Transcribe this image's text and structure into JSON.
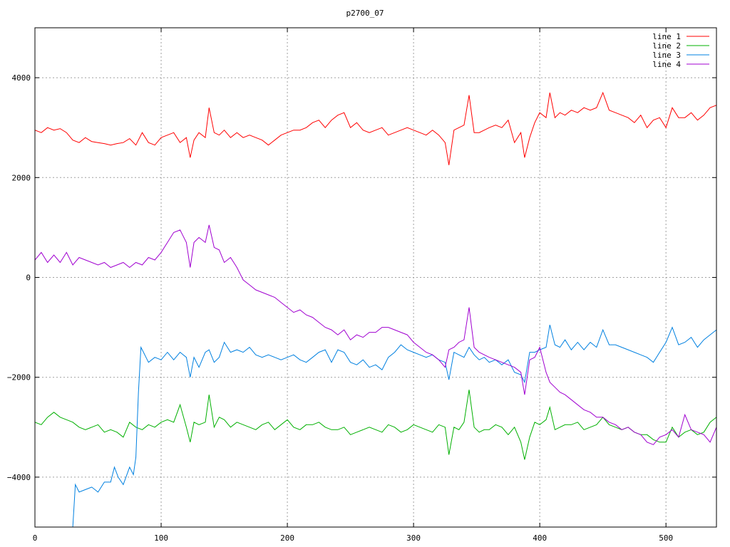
{
  "chart_data": {
    "type": "line",
    "title": "p2700_07",
    "xlabel": "",
    "ylabel": "",
    "xlim": [
      0,
      540
    ],
    "ylim": [
      -5000,
      5000
    ],
    "xticks": [
      0,
      100,
      200,
      300,
      400,
      500
    ],
    "yticks": [
      -4000,
      -2000,
      0,
      2000,
      4000
    ],
    "grid": true,
    "legend_position": "top-right",
    "series": [
      {
        "name": "line 1",
        "color": "#ff0000",
        "x": [
          0,
          5,
          10,
          15,
          20,
          25,
          30,
          35,
          40,
          45,
          50,
          55,
          60,
          65,
          70,
          75,
          80,
          85,
          90,
          95,
          100,
          105,
          110,
          115,
          120,
          123,
          126,
          130,
          135,
          138,
          142,
          146,
          150,
          155,
          160,
          165,
          170,
          175,
          180,
          185,
          190,
          195,
          200,
          205,
          210,
          215,
          220,
          225,
          230,
          235,
          240,
          245,
          250,
          255,
          260,
          265,
          270,
          275,
          280,
          285,
          290,
          295,
          300,
          305,
          310,
          315,
          320,
          325,
          328,
          332,
          336,
          340,
          344,
          348,
          352,
          356,
          360,
          365,
          370,
          375,
          380,
          385,
          388,
          392,
          396,
          400,
          405,
          408,
          412,
          416,
          420,
          425,
          430,
          435,
          440,
          445,
          450,
          455,
          460,
          465,
          470,
          475,
          480,
          485,
          490,
          495,
          500,
          505,
          510,
          515,
          520,
          525,
          530,
          535,
          540
        ],
        "y": [
          2950,
          2900,
          3000,
          2950,
          2980,
          2900,
          2750,
          2700,
          2800,
          2720,
          2700,
          2680,
          2650,
          2680,
          2700,
          2780,
          2650,
          2900,
          2700,
          2650,
          2800,
          2850,
          2900,
          2700,
          2800,
          2400,
          2750,
          2900,
          2800,
          3400,
          2900,
          2850,
          2950,
          2800,
          2900,
          2800,
          2850,
          2800,
          2750,
          2650,
          2750,
          2850,
          2900,
          2950,
          2950,
          3000,
          3100,
          3150,
          3000,
          3150,
          3250,
          3300,
          3000,
          3100,
          2950,
          2900,
          2950,
          3000,
          2850,
          2900,
          2950,
          3000,
          2950,
          2900,
          2850,
          2950,
          2850,
          2700,
          2250,
          2950,
          3000,
          3050,
          3650,
          2900,
          2900,
          2950,
          3000,
          3050,
          3000,
          3150,
          2700,
          2900,
          2400,
          2800,
          3100,
          3300,
          3200,
          3700,
          3200,
          3300,
          3250,
          3350,
          3300,
          3400,
          3350,
          3400,
          3700,
          3350,
          3300,
          3250,
          3200,
          3100,
          3250,
          3000,
          3150,
          3200,
          3000,
          3400,
          3200,
          3200,
          3300,
          3150,
          3250,
          3400,
          3450
        ]
      },
      {
        "name": "line 2",
        "color": "#00b000",
        "x": [
          0,
          5,
          10,
          15,
          20,
          25,
          30,
          35,
          40,
          45,
          50,
          55,
          60,
          65,
          70,
          75,
          80,
          85,
          90,
          95,
          100,
          105,
          110,
          115,
          120,
          123,
          126,
          130,
          135,
          138,
          142,
          146,
          150,
          155,
          160,
          165,
          170,
          175,
          180,
          185,
          190,
          195,
          200,
          205,
          210,
          215,
          220,
          225,
          230,
          235,
          240,
          245,
          250,
          255,
          260,
          265,
          270,
          275,
          280,
          285,
          290,
          295,
          300,
          305,
          310,
          315,
          320,
          325,
          328,
          332,
          336,
          340,
          344,
          348,
          352,
          356,
          360,
          365,
          370,
          375,
          380,
          385,
          388,
          392,
          396,
          400,
          405,
          408,
          412,
          416,
          420,
          425,
          430,
          435,
          440,
          445,
          450,
          455,
          460,
          465,
          470,
          475,
          480,
          485,
          490,
          495,
          500,
          505,
          510,
          515,
          520,
          525,
          530,
          535,
          540
        ],
        "y": [
          -2900,
          -2950,
          -2800,
          -2700,
          -2800,
          -2850,
          -2900,
          -3000,
          -3050,
          -3000,
          -2950,
          -3100,
          -3050,
          -3100,
          -3200,
          -2900,
          -3000,
          -3050,
          -2950,
          -3000,
          -2900,
          -2850,
          -2900,
          -2550,
          -3000,
          -3300,
          -2900,
          -2950,
          -2900,
          -2350,
          -3000,
          -2800,
          -2850,
          -3000,
          -2900,
          -2950,
          -3000,
          -3050,
          -2950,
          -2900,
          -3050,
          -2950,
          -2850,
          -3000,
          -3050,
          -2950,
          -2950,
          -2900,
          -3000,
          -3050,
          -3050,
          -3000,
          -3150,
          -3100,
          -3050,
          -3000,
          -3050,
          -3100,
          -2950,
          -3000,
          -3100,
          -3050,
          -2950,
          -3000,
          -3050,
          -3100,
          -2950,
          -3000,
          -3550,
          -3000,
          -3050,
          -2900,
          -2250,
          -3000,
          -3100,
          -3050,
          -3050,
          -2950,
          -3000,
          -3150,
          -3000,
          -3300,
          -3650,
          -3200,
          -2900,
          -2950,
          -2850,
          -2600,
          -3050,
          -3000,
          -2950,
          -2950,
          -2900,
          -3050,
          -3000,
          -2950,
          -2800,
          -2950,
          -3000,
          -3050,
          -3000,
          -3100,
          -3150,
          -3150,
          -3250,
          -3300,
          -3300,
          -3000,
          -3200,
          -3100,
          -3050,
          -3150,
          -3100,
          -2900,
          -2800
        ]
      },
      {
        "name": "line 3",
        "color": "#0080e0",
        "x": [
          30,
          32,
          35,
          40,
          45,
          50,
          55,
          60,
          63,
          66,
          70,
          75,
          78,
          80,
          82,
          84,
          86,
          88,
          90,
          95,
          100,
          105,
          110,
          115,
          120,
          123,
          126,
          130,
          135,
          138,
          142,
          146,
          150,
          155,
          160,
          165,
          170,
          175,
          180,
          185,
          190,
          195,
          200,
          205,
          210,
          215,
          220,
          225,
          230,
          235,
          240,
          245,
          250,
          255,
          260,
          265,
          270,
          275,
          280,
          285,
          290,
          295,
          300,
          305,
          310,
          315,
          320,
          325,
          328,
          332,
          336,
          340,
          344,
          348,
          352,
          356,
          360,
          365,
          370,
          375,
          380,
          385,
          388,
          392,
          396,
          400,
          405,
          408,
          412,
          416,
          420,
          425,
          430,
          435,
          440,
          445,
          450,
          455,
          460,
          465,
          470,
          475,
          480,
          485,
          490,
          495,
          500,
          505,
          510,
          515,
          520,
          525,
          530,
          535,
          540
        ],
        "y": [
          -5000,
          -4150,
          -4300,
          -4250,
          -4200,
          -4300,
          -4100,
          -4100,
          -3800,
          -4000,
          -4150,
          -3800,
          -3950,
          -3600,
          -2300,
          -1400,
          -1500,
          -1600,
          -1700,
          -1600,
          -1650,
          -1500,
          -1650,
          -1500,
          -1600,
          -2000,
          -1600,
          -1800,
          -1500,
          -1450,
          -1700,
          -1600,
          -1300,
          -1500,
          -1450,
          -1500,
          -1400,
          -1550,
          -1600,
          -1550,
          -1600,
          -1650,
          -1600,
          -1550,
          -1650,
          -1700,
          -1600,
          -1500,
          -1450,
          -1700,
          -1450,
          -1500,
          -1700,
          -1750,
          -1650,
          -1800,
          -1750,
          -1850,
          -1600,
          -1500,
          -1350,
          -1450,
          -1500,
          -1550,
          -1600,
          -1550,
          -1650,
          -1700,
          -2050,
          -1500,
          -1550,
          -1600,
          -1400,
          -1550,
          -1650,
          -1600,
          -1700,
          -1650,
          -1750,
          -1650,
          -1900,
          -1950,
          -2100,
          -1500,
          -1500,
          -1450,
          -1400,
          -950,
          -1350,
          -1400,
          -1250,
          -1450,
          -1300,
          -1450,
          -1300,
          -1400,
          -1050,
          -1350,
          -1350,
          -1400,
          -1450,
          -1500,
          -1550,
          -1600,
          -1700,
          -1500,
          -1300,
          -1000,
          -1350,
          -1300,
          -1200,
          -1400,
          -1250,
          -1150,
          -1050
        ]
      },
      {
        "name": "line 4",
        "color": "#a000d0",
        "x": [
          0,
          5,
          10,
          15,
          20,
          25,
          30,
          35,
          40,
          45,
          50,
          55,
          60,
          65,
          70,
          75,
          80,
          85,
          90,
          95,
          100,
          105,
          110,
          115,
          120,
          123,
          126,
          130,
          135,
          138,
          142,
          146,
          150,
          155,
          160,
          165,
          170,
          175,
          180,
          185,
          190,
          195,
          200,
          205,
          210,
          215,
          220,
          225,
          230,
          235,
          240,
          245,
          250,
          255,
          260,
          265,
          270,
          275,
          280,
          285,
          290,
          295,
          300,
          305,
          310,
          315,
          320,
          325,
          328,
          332,
          336,
          340,
          344,
          348,
          352,
          356,
          360,
          365,
          370,
          375,
          380,
          385,
          388,
          392,
          396,
          400,
          405,
          408,
          412,
          416,
          420,
          425,
          430,
          435,
          440,
          445,
          450,
          455,
          460,
          465,
          470,
          475,
          480,
          485,
          490,
          495,
          500,
          505,
          510,
          515,
          520,
          525,
          530,
          535,
          540
        ],
        "y": [
          350,
          500,
          300,
          450,
          300,
          500,
          250,
          400,
          350,
          300,
          250,
          300,
          200,
          250,
          300,
          200,
          300,
          250,
          400,
          350,
          500,
          700,
          900,
          950,
          700,
          200,
          700,
          800,
          700,
          1050,
          600,
          550,
          300,
          400,
          200,
          -50,
          -150,
          -250,
          -300,
          -350,
          -400,
          -500,
          -600,
          -700,
          -650,
          -750,
          -800,
          -900,
          -1000,
          -1050,
          -1150,
          -1050,
          -1250,
          -1150,
          -1200,
          -1100,
          -1100,
          -1000,
          -1000,
          -1050,
          -1100,
          -1150,
          -1300,
          -1400,
          -1500,
          -1550,
          -1650,
          -1800,
          -1450,
          -1400,
          -1300,
          -1250,
          -600,
          -1400,
          -1500,
          -1550,
          -1600,
          -1650,
          -1700,
          -1750,
          -1800,
          -1900,
          -2350,
          -1650,
          -1600,
          -1400,
          -1900,
          -2100,
          -2200,
          -2300,
          -2350,
          -2450,
          -2550,
          -2650,
          -2700,
          -2800,
          -2800,
          -2900,
          -2950,
          -3050,
          -3000,
          -3100,
          -3150,
          -3300,
          -3350,
          -3200,
          -3150,
          -3050,
          -3200,
          -2750,
          -3050,
          -3100,
          -3150,
          -3300,
          -3000
        ]
      }
    ]
  }
}
